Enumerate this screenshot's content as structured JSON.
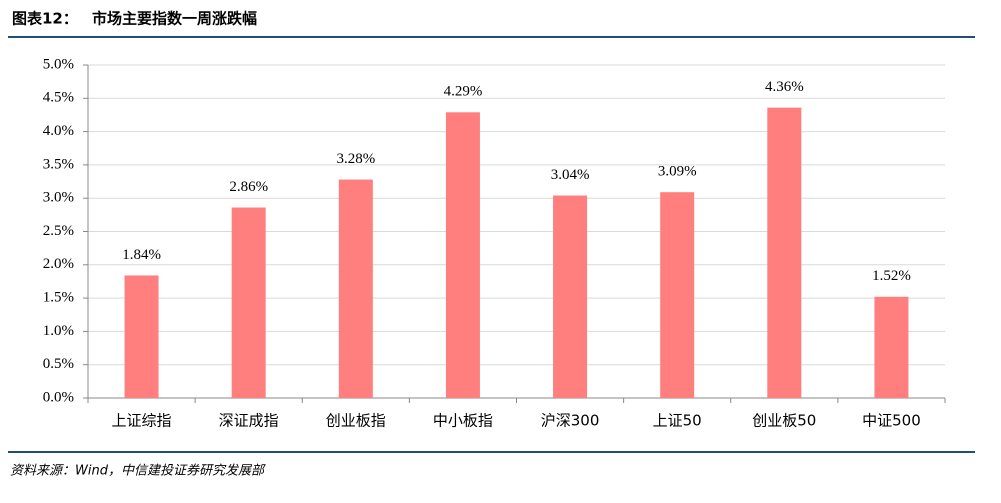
{
  "chart_data": {
    "type": "bar",
    "figure_label": "图表12：",
    "title": "市场主要指数一周涨跌幅",
    "categories": [
      "上证综指",
      "深证成指",
      "创业板指",
      "中小板指",
      "沪深300",
      "上证50",
      "创业板50",
      "中证500"
    ],
    "values": [
      1.84,
      2.86,
      3.28,
      4.29,
      3.04,
      3.09,
      4.36,
      1.52
    ],
    "value_labels": [
      "1.84%",
      "2.86%",
      "3.28%",
      "4.29%",
      "3.04%",
      "3.09%",
      "4.36%",
      "1.52%"
    ],
    "color": "#ff7f7f",
    "ylim": [
      0,
      5
    ],
    "yticks": [
      {
        "value": 0,
        "label": "0.0%"
      },
      {
        "value": 0.5,
        "label": "0.5%"
      },
      {
        "value": 1,
        "label": "1.0%"
      },
      {
        "value": 1.5,
        "label": "1.5%"
      },
      {
        "value": 2,
        "label": "2.0%"
      },
      {
        "value": 2.5,
        "label": "2.5%"
      },
      {
        "value": 3,
        "label": "3.0%"
      },
      {
        "value": 3.5,
        "label": "3.5%"
      },
      {
        "value": 4,
        "label": "4.0%"
      },
      {
        "value": 4.5,
        "label": "4.5%"
      },
      {
        "value": 5,
        "label": "5.0%"
      }
    ],
    "grid": true,
    "source": "资料来源：Wind，中信建投证券研究发展部"
  }
}
